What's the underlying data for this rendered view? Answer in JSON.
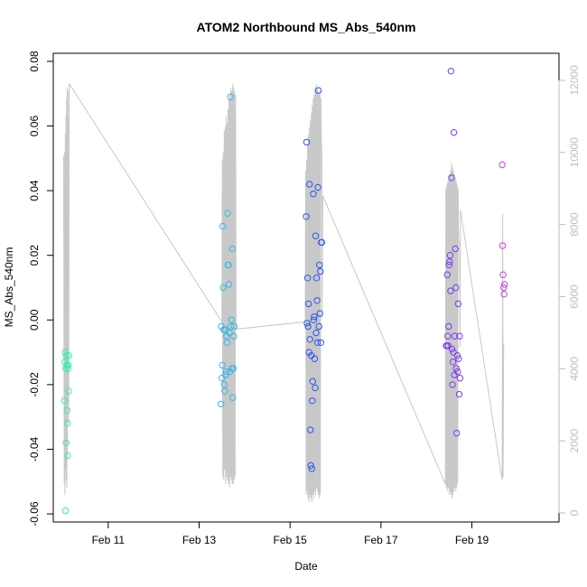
{
  "chart_data": {
    "type": "scatter",
    "title": "ATOM2 Northbound MS_Abs_540nm",
    "xlabel": "Date",
    "ylabel": "MS_Abs_540nm",
    "xlim": [
      "2018-02-09T19:00",
      "2018-02-20T22:00"
    ],
    "ylim": [
      -0.0625,
      0.0825
    ],
    "y2lim": [
      -250,
      12750
    ],
    "x_ticks": [
      {
        "value": "2018-02-11",
        "label": "Feb 11"
      },
      {
        "value": "2018-02-13",
        "label": "Feb 13"
      },
      {
        "value": "2018-02-15",
        "label": "Feb 15"
      },
      {
        "value": "2018-02-17",
        "label": "Feb 17"
      },
      {
        "value": "2018-02-19",
        "label": "Feb 19"
      }
    ],
    "y_ticks": [
      {
        "value": -0.06,
        "label": "-0.06"
      },
      {
        "value": -0.04,
        "label": "-0.04"
      },
      {
        "value": -0.02,
        "label": "-0.02"
      },
      {
        "value": 0.0,
        "label": "0.00"
      },
      {
        "value": 0.02,
        "label": "0.02"
      },
      {
        "value": 0.04,
        "label": "0.04"
      },
      {
        "value": 0.06,
        "label": "0.06"
      },
      {
        "value": 0.08,
        "label": "0.08"
      }
    ],
    "y2_ticks": [
      {
        "value": 0,
        "label": "0"
      },
      {
        "value": 2000,
        "label": "2000"
      },
      {
        "value": 4000,
        "label": "4000"
      },
      {
        "value": 6000,
        "label": "6000"
      },
      {
        "value": 8000,
        "label": "8000"
      },
      {
        "value": 10000,
        "label": "10000"
      },
      {
        "value": 12000,
        "label": "12000"
      }
    ],
    "grid": false,
    "legend": "none",
    "line_color": "#c8c8c8",
    "point_colors": {
      "Feb 10": "#33f0a8",
      "Feb 13": "#36b8e8",
      "Feb 15": "#2a55ee",
      "Feb 18": "#7a3cf0",
      "Feb 19": "#d040ea"
    },
    "series": [
      {
        "group": "Feb 10",
        "x": [
          "2018-02-10T00:55",
          "2018-02-10T01:05",
          "2018-02-10T01:15",
          "2018-02-10T01:25",
          "2018-02-10T01:35",
          "2018-02-10T01:45",
          "2018-02-10T01:55",
          "2018-02-10T02:05",
          "2018-02-10T02:15",
          "2018-02-10T02:25",
          "2018-02-10T02:35",
          "2018-02-10T02:45",
          "2018-02-10T02:55",
          "2018-02-10T03:05",
          "2018-02-10T03:15"
        ],
        "y": [
          -0.025,
          -0.013,
          -0.01,
          -0.059,
          -0.015,
          -0.038,
          -0.011,
          -0.014,
          -0.028,
          -0.032,
          -0.042,
          -0.015,
          -0.014,
          -0.022,
          -0.011
        ]
      },
      {
        "group": "Feb 13",
        "x": [
          "2018-02-13T11:30",
          "2018-02-13T11:45",
          "2018-02-13T12:00",
          "2018-02-13T12:15",
          "2018-02-13T12:30",
          "2018-02-13T12:45",
          "2018-02-13T13:00",
          "2018-02-13T13:15",
          "2018-02-13T13:30",
          "2018-02-13T13:45",
          "2018-02-13T14:00",
          "2018-02-13T14:15",
          "2018-02-13T14:30",
          "2018-02-13T14:45",
          "2018-02-13T15:00",
          "2018-02-13T15:15",
          "2018-02-13T15:30",
          "2018-02-13T15:45",
          "2018-02-13T16:00",
          "2018-02-13T16:15",
          "2018-02-13T16:30",
          "2018-02-13T16:45",
          "2018-02-13T17:00",
          "2018-02-13T17:15",
          "2018-02-13T17:30",
          "2018-02-13T17:45",
          "2018-02-13T18:00",
          "2018-02-13T18:15",
          "2018-02-13T18:30"
        ],
        "y": [
          -0.026,
          -0.002,
          -0.018,
          -0.014,
          0.029,
          0.01,
          -0.003,
          -0.02,
          -0.022,
          -0.003,
          -0.017,
          -0.016,
          -0.005,
          -0.007,
          0.033,
          0.017,
          0.017,
          0.011,
          -0.004,
          -0.016,
          0.069,
          -0.002,
          0.0,
          -0.015,
          0.022,
          -0.024,
          -0.015,
          -0.005,
          -0.002
        ]
      },
      {
        "group": "Feb 15",
        "x": [
          "2018-02-15T08:30",
          "2018-02-15T08:45",
          "2018-02-15T09:00",
          "2018-02-15T09:15",
          "2018-02-15T09:30",
          "2018-02-15T09:45",
          "2018-02-15T10:00",
          "2018-02-15T10:15",
          "2018-02-15T10:30",
          "2018-02-15T10:45",
          "2018-02-15T11:00",
          "2018-02-15T11:15",
          "2018-02-15T11:30",
          "2018-02-15T11:45",
          "2018-02-15T12:00",
          "2018-02-15T12:15",
          "2018-02-15T12:30",
          "2018-02-15T12:45",
          "2018-02-15T13:00",
          "2018-02-15T13:15",
          "2018-02-15T13:30",
          "2018-02-15T13:45",
          "2018-02-15T14:00",
          "2018-02-15T14:15",
          "2018-02-15T14:30",
          "2018-02-15T14:45",
          "2018-02-15T15:00",
          "2018-02-15T15:15",
          "2018-02-15T15:30",
          "2018-02-15T15:45",
          "2018-02-15T16:00",
          "2018-02-15T16:15",
          "2018-02-15T16:30",
          "2018-02-15T16:45"
        ],
        "y": [
          0.032,
          0.055,
          -0.001,
          0.013,
          -0.002,
          0.005,
          -0.01,
          0.042,
          -0.006,
          -0.034,
          -0.045,
          -0.011,
          -0.046,
          -0.025,
          -0.019,
          0.039,
          0.0,
          0.001,
          -0.012,
          -0.021,
          0.026,
          -0.004,
          0.013,
          0.006,
          -0.007,
          0.041,
          0.071,
          -0.002,
          0.017,
          0.002,
          0.015,
          -0.007,
          0.024,
          0.024
        ]
      },
      {
        "group": "Feb 18",
        "x": [
          "2018-02-18T10:30",
          "2018-02-18T10:45",
          "2018-02-18T11:00",
          "2018-02-18T11:15",
          "2018-02-18T11:30",
          "2018-02-18T11:45",
          "2018-02-18T12:00",
          "2018-02-18T12:15",
          "2018-02-18T12:30",
          "2018-02-18T12:45",
          "2018-02-18T13:00",
          "2018-02-18T13:15",
          "2018-02-18T13:30",
          "2018-02-18T13:45",
          "2018-02-18T14:00",
          "2018-02-18T14:15",
          "2018-02-18T14:30",
          "2018-02-18T14:45",
          "2018-02-18T15:00",
          "2018-02-18T15:15",
          "2018-02-18T15:30",
          "2018-02-18T15:45",
          "2018-02-18T16:00",
          "2018-02-18T16:15",
          "2018-02-18T16:30",
          "2018-02-18T16:45",
          "2018-02-18T17:00",
          "2018-02-18T17:15",
          "2018-02-18T17:30",
          "2018-02-18T17:45"
        ],
        "y": [
          -0.008,
          -0.008,
          0.014,
          -0.005,
          -0.008,
          -0.002,
          0.017,
          0.018,
          0.02,
          0.009,
          0.077,
          0.044,
          -0.009,
          -0.02,
          -0.013,
          -0.01,
          0.058,
          -0.017,
          -0.005,
          0.022,
          0.01,
          -0.015,
          -0.035,
          -0.011,
          -0.016,
          0.005,
          -0.012,
          -0.023,
          -0.005,
          -0.018
        ]
      },
      {
        "group": "Feb 19",
        "x": [
          "2018-02-19T16:00",
          "2018-02-19T16:15",
          "2018-02-19T16:30",
          "2018-02-19T16:45",
          "2018-02-19T17:00",
          "2018-02-19T17:15"
        ],
        "y": [
          0.048,
          0.023,
          0.014,
          0.01,
          0.008,
          0.011
        ]
      }
    ],
    "line_series": [
      {
        "x": [
          "2018-02-10T00:30",
          "2018-02-10T00:40",
          "2018-02-10T00:50",
          "2018-02-10T01:00",
          "2018-02-10T01:10",
          "2018-02-10T01:20",
          "2018-02-10T01:30",
          "2018-02-10T01:40",
          "2018-02-10T01:50",
          "2018-02-10T02:00",
          "2018-02-10T02:10",
          "2018-02-10T02:20",
          "2018-02-10T02:30",
          "2018-02-10T02:40",
          "2018-02-10T02:50",
          "2018-02-10T03:00",
          "2018-02-10T03:10",
          "2018-02-10T03:20",
          "2018-02-10T03:30",
          "2018-02-13T12:00",
          "2018-02-13T12:15",
          "2018-02-13T12:30",
          "2018-02-13T12:45",
          "2018-02-13T13:00",
          "2018-02-13T13:15",
          "2018-02-13T13:30",
          "2018-02-13T13:45",
          "2018-02-13T14:00",
          "2018-02-13T14:15",
          "2018-02-13T14:30",
          "2018-02-13T14:45",
          "2018-02-13T15:00",
          "2018-02-13T15:15",
          "2018-02-13T15:30",
          "2018-02-13T15:45",
          "2018-02-13T16:00",
          "2018-02-13T16:15",
          "2018-02-13T16:30",
          "2018-02-13T16:45",
          "2018-02-13T17:00",
          "2018-02-13T17:15",
          "2018-02-13T17:30",
          "2018-02-13T17:45",
          "2018-02-13T18:00",
          "2018-02-13T18:15",
          "2018-02-13T18:30",
          "2018-02-13T18:45",
          "2018-02-13T19:00",
          "2018-02-13T19:15",
          "2018-02-13T19:30",
          "2018-02-13T19:45",
          "2018-02-15T08:00",
          "2018-02-15T08:15",
          "2018-02-15T08:30",
          "2018-02-15T08:45",
          "2018-02-15T09:00",
          "2018-02-15T09:15",
          "2018-02-15T09:30",
          "2018-02-15T09:45",
          "2018-02-15T10:00",
          "2018-02-15T10:15",
          "2018-02-15T10:30",
          "2018-02-15T10:45",
          "2018-02-15T11:00",
          "2018-02-15T11:15",
          "2018-02-15T11:30",
          "2018-02-15T11:45",
          "2018-02-15T12:00",
          "2018-02-15T12:15",
          "2018-02-15T12:30",
          "2018-02-15T12:45",
          "2018-02-15T13:00",
          "2018-02-15T13:15",
          "2018-02-15T13:30",
          "2018-02-15T13:45",
          "2018-02-15T14:00",
          "2018-02-15T14:15",
          "2018-02-15T14:30",
          "2018-02-15T14:45",
          "2018-02-15T15:00",
          "2018-02-15T15:15",
          "2018-02-15T15:30",
          "2018-02-15T15:45",
          "2018-02-15T16:00",
          "2018-02-15T16:15",
          "2018-02-15T16:30",
          "2018-02-15T16:45",
          "2018-02-15T17:00",
          "2018-02-15T17:15",
          "2018-02-18T10:00",
          "2018-02-18T10:15",
          "2018-02-18T10:30",
          "2018-02-18T10:45",
          "2018-02-18T11:00",
          "2018-02-18T11:15",
          "2018-02-18T11:30",
          "2018-02-18T11:45",
          "2018-02-18T12:00",
          "2018-02-18T12:15",
          "2018-02-18T12:30",
          "2018-02-18T12:45",
          "2018-02-18T13:00",
          "2018-02-18T13:15",
          "2018-02-18T13:30",
          "2018-02-18T13:45",
          "2018-02-18T14:00",
          "2018-02-18T14:15",
          "2018-02-18T14:30",
          "2018-02-18T14:45",
          "2018-02-18T15:00",
          "2018-02-18T15:15",
          "2018-02-18T15:30",
          "2018-02-18T15:45",
          "2018-02-18T16:00",
          "2018-02-18T16:15",
          "2018-02-18T16:30",
          "2018-02-18T16:45",
          "2018-02-18T17:00",
          "2018-02-18T17:15",
          "2018-02-18T17:30",
          "2018-02-18T17:45",
          "2018-02-18T18:00",
          "2018-02-19T16:00",
          "2018-02-19T16:15",
          "2018-02-19T16:30",
          "2018-02-19T16:45",
          "2018-02-19T17:00",
          "2018-02-19T17:15"
        ],
        "y2": [
          9900,
          3500,
          800,
          10000,
          500,
          10500,
          1200,
          11000,
          900,
          11500,
          700,
          11800,
          1500,
          11000,
          3000,
          11700,
          2500,
          11800,
          11900,
          5300,
          9800,
          1000,
          10000,
          900,
          10600,
          1200,
          10700,
          800,
          11000,
          1000,
          10800,
          900,
          11200,
          800,
          11500,
          700,
          11600,
          1000,
          11800,
          900,
          11700,
          800,
          11900,
          800,
          11800,
          900,
          11700,
          1000,
          11600,
          5200,
          5100,
          5300,
          9500,
          500,
          9800,
          600,
          10200,
          400,
          10500,
          300,
          10700,
          500,
          10900,
          400,
          11100,
          300,
          11300,
          500,
          11500,
          400,
          11600,
          600,
          11800,
          500,
          11900,
          700,
          11800,
          600,
          11700,
          500,
          11600,
          400,
          11700,
          500,
          11500,
          10300,
          10200,
          5400,
          8800,
          800,
          9000,
          700,
          9100,
          600,
          9200,
          700,
          9300,
          500,
          9400,
          600,
          9500,
          500,
          9700,
          400,
          9600,
          500,
          9500,
          600,
          9400,
          700,
          9300,
          600,
          9200,
          700,
          9100,
          800,
          9000,
          7600,
          7500,
          7400,
          4600,
          8400,
          900,
          8300,
          1000,
          4700
        ]
      }
    ]
  }
}
